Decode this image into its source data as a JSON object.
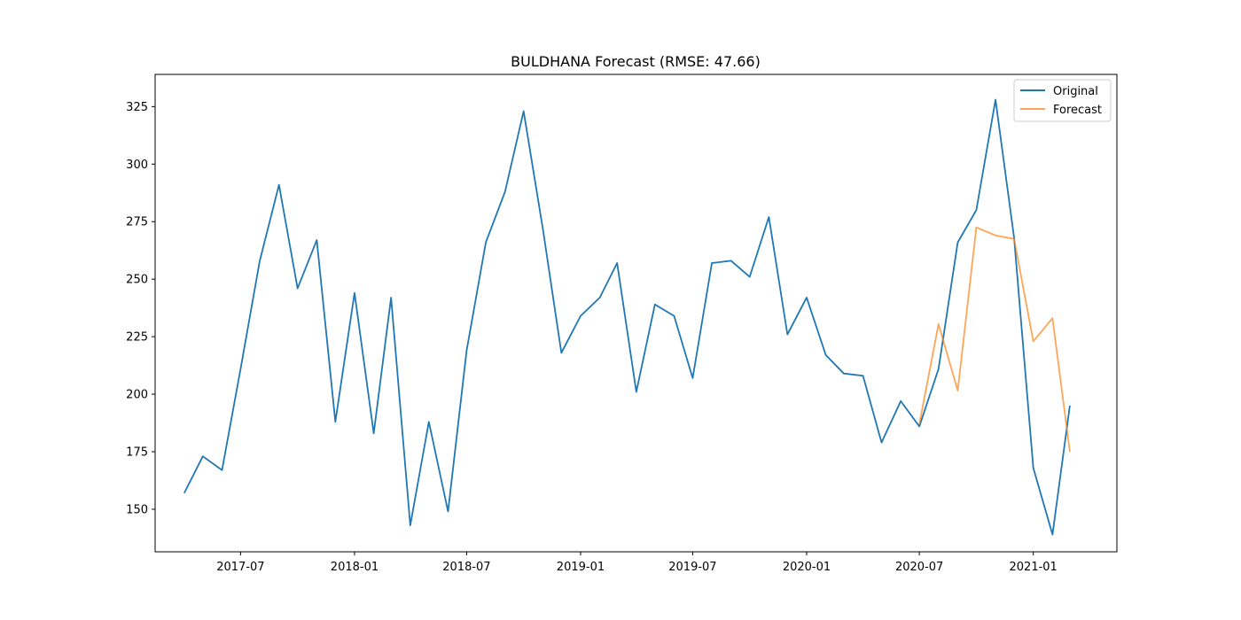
{
  "chart_data": {
    "type": "line",
    "title": "BULDHANA Forecast (RMSE: 47.66)",
    "xlabel": "",
    "ylabel": "",
    "x_axis_type": "date",
    "x_ticks": [
      "2017-07",
      "2018-01",
      "2018-07",
      "2019-01",
      "2019-07",
      "2020-01",
      "2020-07",
      "2021-01"
    ],
    "y_ticks": [
      150,
      175,
      200,
      225,
      250,
      275,
      300,
      325
    ],
    "xlim": [
      "2017-02-13",
      "2021-05-16"
    ],
    "ylim": [
      131.5,
      339
    ],
    "grid": false,
    "legend_position": "top-right",
    "series": [
      {
        "name": "Original",
        "color": "#1f77b4",
        "points": [
          [
            "2017-04-01",
            157
          ],
          [
            "2017-05-01",
            173
          ],
          [
            "2017-06-01",
            167
          ],
          [
            "2017-07-01",
            211
          ],
          [
            "2017-08-01",
            258
          ],
          [
            "2017-09-01",
            291
          ],
          [
            "2017-10-01",
            246
          ],
          [
            "2017-11-01",
            267
          ],
          [
            "2017-12-01",
            188
          ],
          [
            "2018-01-01",
            244
          ],
          [
            "2018-02-01",
            183
          ],
          [
            "2018-03-01",
            242
          ],
          [
            "2018-04-01",
            143
          ],
          [
            "2018-05-01",
            188
          ],
          [
            "2018-06-01",
            149
          ],
          [
            "2018-07-01",
            219
          ],
          [
            "2018-08-01",
            266
          ],
          [
            "2018-09-01",
            288
          ],
          [
            "2018-10-01",
            323
          ],
          [
            "2018-11-01",
            272
          ],
          [
            "2018-12-01",
            218
          ],
          [
            "2019-01-01",
            234
          ],
          [
            "2019-02-01",
            242
          ],
          [
            "2019-03-01",
            257
          ],
          [
            "2019-04-01",
            201
          ],
          [
            "2019-05-01",
            239
          ],
          [
            "2019-06-01",
            234
          ],
          [
            "2019-07-01",
            207
          ],
          [
            "2019-08-01",
            257
          ],
          [
            "2019-09-01",
            258
          ],
          [
            "2019-10-01",
            251
          ],
          [
            "2019-11-01",
            277
          ],
          [
            "2019-12-01",
            226
          ],
          [
            "2020-01-01",
            242
          ],
          [
            "2020-02-01",
            217
          ],
          [
            "2020-03-01",
            209
          ],
          [
            "2020-04-01",
            208
          ],
          [
            "2020-05-01",
            179
          ],
          [
            "2020-06-01",
            197
          ],
          [
            "2020-07-01",
            186
          ],
          [
            "2020-08-01",
            211
          ],
          [
            "2020-09-01",
            266
          ],
          [
            "2020-10-01",
            280
          ],
          [
            "2020-11-01",
            328
          ],
          [
            "2020-12-01",
            268
          ],
          [
            "2021-01-01",
            168
          ],
          [
            "2021-02-01",
            139
          ],
          [
            "2021-03-01",
            195
          ]
        ]
      },
      {
        "name": "Forecast",
        "color": "#ff7f0e",
        "points": [
          [
            "2020-07-01",
            187
          ],
          [
            "2020-08-01",
            230.5
          ],
          [
            "2020-09-01",
            201.5
          ],
          [
            "2020-10-01",
            272.5
          ],
          [
            "2020-11-01",
            269
          ],
          [
            "2020-12-01",
            267.5
          ],
          [
            "2021-01-01",
            223
          ],
          [
            "2021-02-01",
            233
          ],
          [
            "2021-03-01",
            175
          ]
        ]
      }
    ]
  }
}
